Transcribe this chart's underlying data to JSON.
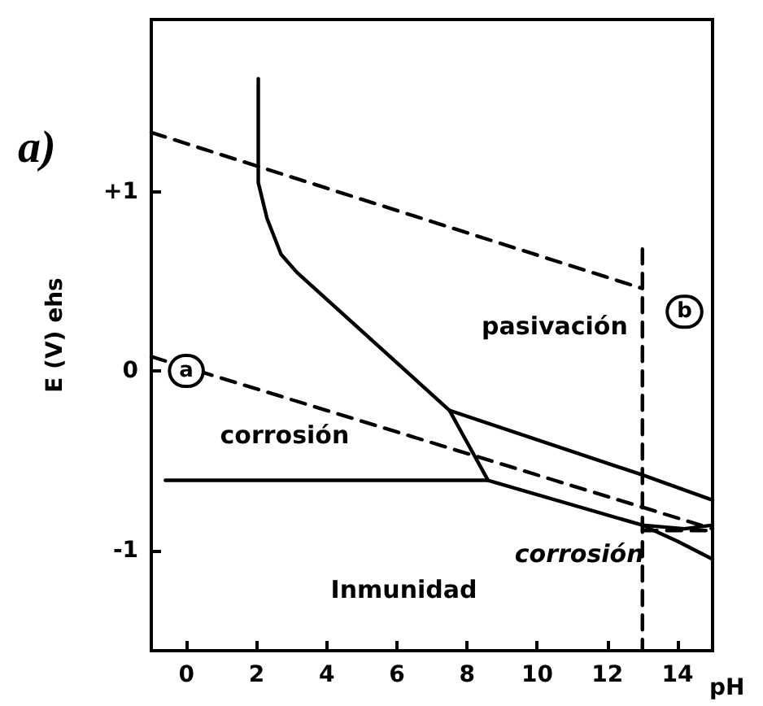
{
  "chart_data": {
    "type": "line",
    "title": "a)",
    "xlabel": "pH",
    "ylabel": "E (V) ehs",
    "xlim": [
      -1,
      15
    ],
    "xticks": [
      0,
      2,
      4,
      6,
      8,
      10,
      12,
      14
    ],
    "ylim": [
      -1.56,
      1.96
    ],
    "yticks": [
      -1,
      0,
      {
        "value": 1,
        "label": "+1"
      }
    ],
    "grid": false,
    "marker": "none",
    "series": [
      {
        "color": "#000000",
        "line_style": "dashed",
        "x": [
          -1,
          13
        ],
        "values": [
          1.33,
          0.46
        ]
      },
      {
        "color": "#000000",
        "line_style": "dashed",
        "x": [
          -1,
          15
        ],
        "values": [
          0.08,
          -0.88
        ]
      },
      {
        "color": "#000000",
        "line_style": "dashed",
        "x": [
          13,
          13
        ],
        "values": [
          0.68,
          -1.56
        ]
      },
      {
        "color": "#000000",
        "line_style": "dashed",
        "x": [
          13,
          15
        ],
        "values": [
          -0.89,
          -0.89
        ]
      },
      {
        "color": "#000000",
        "line_style": "solid",
        "x": [
          2.05,
          2.05,
          2.3,
          2.7,
          3.15,
          7.5,
          8.6
        ],
        "values": [
          1.63,
          1.05,
          0.85,
          0.65,
          0.55,
          -0.22,
          -0.61
        ]
      },
      {
        "color": "#000000",
        "line_style": "solid",
        "x": [
          7.5,
          13,
          15
        ],
        "values": [
          -0.22,
          -0.58,
          -0.72
        ]
      },
      {
        "color": "#000000",
        "line_style": "solid",
        "x": [
          -0.6,
          8.6,
          13,
          14,
          15
        ],
        "values": [
          -0.61,
          -0.61,
          -0.86,
          -0.95,
          -1.05
        ]
      },
      {
        "color": "#000000",
        "line_style": "solid",
        "x": [
          13,
          14.2,
          15
        ],
        "values": [
          -0.86,
          -0.88,
          -0.86
        ]
      }
    ],
    "annotations": [
      {
        "text": "a",
        "x": 0,
        "y": 0
      },
      {
        "text": "b",
        "x": 14.2,
        "y": 0.33
      },
      "pasivación",
      "corrosión",
      "corrosión",
      "Inmunidad"
    ]
  }
}
